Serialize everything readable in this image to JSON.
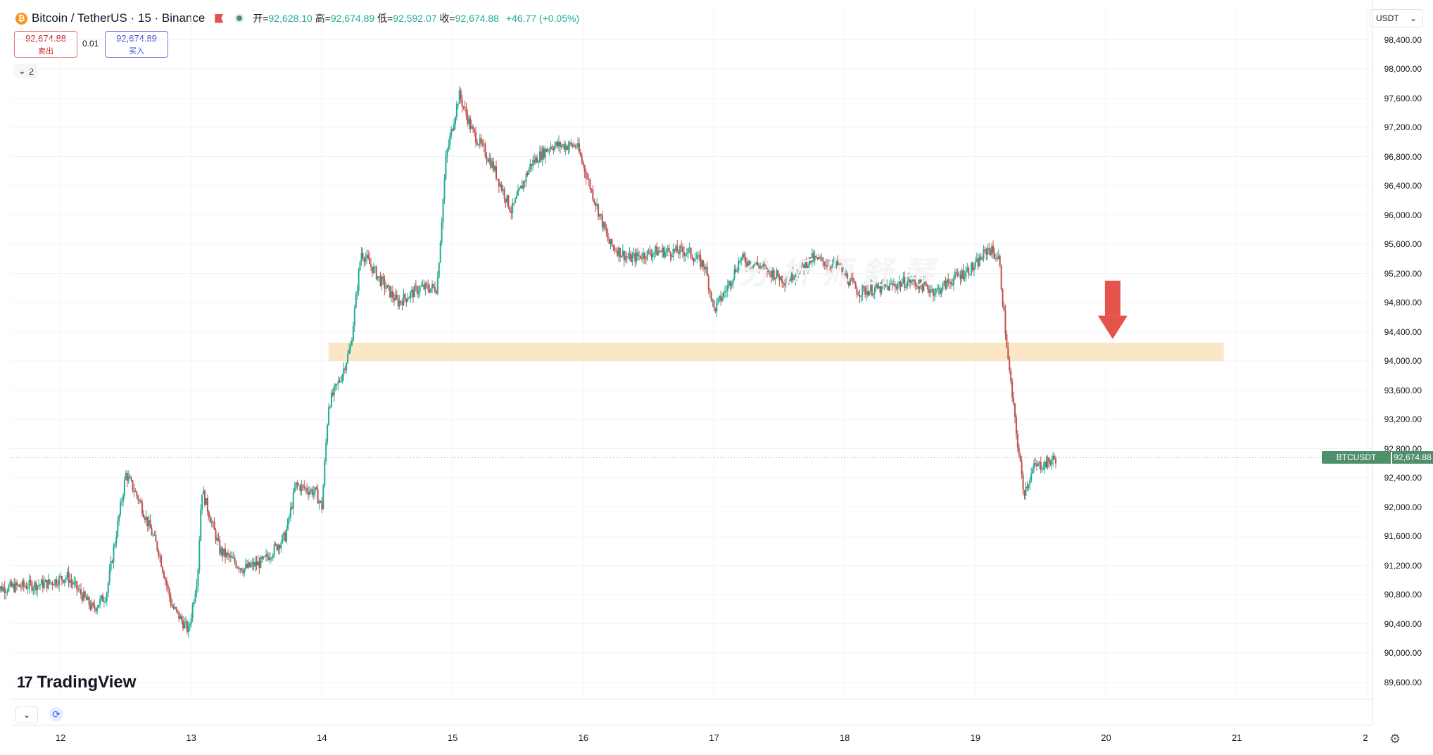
{
  "header": {
    "logo_letter": "₿",
    "title": "Bitcoin / TetherUS · 15 · Binance",
    "open_label": "开=",
    "open": "92,628.10",
    "high_label": "高=",
    "high": "92,674.89",
    "low_label": "低=",
    "low": "92,592.07",
    "close_label": "收=",
    "close": "92,674.88",
    "change": "+46.77 (+0.05%)"
  },
  "trade": {
    "sell_price": "92,674.88",
    "sell_label": "卖出",
    "spread": "0.01",
    "buy_price": "92,674.89",
    "buy_label": "买入"
  },
  "indicators": {
    "collapse_count": "2",
    "chevron_icon": "chevron-down-icon"
  },
  "currency": {
    "value": "USDT",
    "icon": "chevron-down-icon"
  },
  "watermark": "分析师舒琴",
  "brand": {
    "mark": "17",
    "name": "TradingView"
  },
  "price_axis": {
    "labels": [
      "98,400.00",
      "98,000.00",
      "97,600.00",
      "97,200.00",
      "96,800.00",
      "96,400.00",
      "96,000.00",
      "95,600.00",
      "95,200.00",
      "94,800.00",
      "94,400.00",
      "94,000.00",
      "93,600.00",
      "93,200.00",
      "92,800.00",
      "92,400.00",
      "92,000.00",
      "91,600.00",
      "91,200.00",
      "90,800.00",
      "90,400.00",
      "90,000.00",
      "89,600.00"
    ]
  },
  "last_price": {
    "symbol": "BTCUSDT",
    "price": "92,674.88"
  },
  "time_axis": {
    "labels": [
      "12",
      "13",
      "14",
      "15",
      "16",
      "17",
      "18",
      "19",
      "20",
      "21",
      "2"
    ]
  },
  "colors": {
    "up": "#22ab94",
    "down": "#c0504d",
    "zone": "#fbe7c6",
    "arrow": "#e5534b"
  },
  "chart_data": {
    "type": "candlestick",
    "interval": "15",
    "ylim": [
      89400,
      98600
    ],
    "x_day_labels": [
      "12",
      "13",
      "14",
      "15",
      "16",
      "17",
      "18",
      "19",
      "20",
      "21",
      "2"
    ],
    "path": [
      [
        11.5,
        90880
      ],
      [
        11.9,
        90950
      ],
      [
        12.05,
        91050
      ],
      [
        12.25,
        90600
      ],
      [
        12.35,
        90800
      ],
      [
        12.45,
        91900
      ],
      [
        12.5,
        92450
      ],
      [
        12.6,
        92100
      ],
      [
        12.75,
        91400
      ],
      [
        12.85,
        90650
      ],
      [
        12.98,
        90300
      ],
      [
        13.05,
        91100
      ],
      [
        13.08,
        92250
      ],
      [
        13.22,
        91400
      ],
      [
        13.4,
        91150
      ],
      [
        13.55,
        91250
      ],
      [
        13.72,
        91600
      ],
      [
        13.8,
        92300
      ],
      [
        13.95,
        92200
      ],
      [
        14.0,
        92000
      ],
      [
        14.05,
        93400
      ],
      [
        14.15,
        93800
      ],
      [
        14.22,
        94200
      ],
      [
        14.3,
        95500
      ],
      [
        14.45,
        95100
      ],
      [
        14.58,
        94800
      ],
      [
        14.75,
        95000
      ],
      [
        14.88,
        95000
      ],
      [
        14.95,
        96800
      ],
      [
        15.05,
        97650
      ],
      [
        15.15,
        97150
      ],
      [
        15.3,
        96700
      ],
      [
        15.45,
        96050
      ],
      [
        15.6,
        96700
      ],
      [
        15.75,
        96950
      ],
      [
        15.95,
        96950
      ],
      [
        16.05,
        96400
      ],
      [
        16.2,
        95600
      ],
      [
        16.35,
        95400
      ],
      [
        16.55,
        95500
      ],
      [
        16.8,
        95500
      ],
      [
        16.93,
        95300
      ],
      [
        17.0,
        94700
      ],
      [
        17.1,
        95000
      ],
      [
        17.2,
        95400
      ],
      [
        17.35,
        95300
      ],
      [
        17.55,
        95100
      ],
      [
        17.75,
        95400
      ],
      [
        17.95,
        95300
      ],
      [
        18.1,
        94950
      ],
      [
        18.3,
        95000
      ],
      [
        18.5,
        95100
      ],
      [
        18.7,
        94950
      ],
      [
        18.85,
        95150
      ],
      [
        19.0,
        95300
      ],
      [
        19.1,
        95550
      ],
      [
        19.18,
        95400
      ],
      [
        19.25,
        94000
      ],
      [
        19.32,
        92900
      ],
      [
        19.37,
        92200
      ],
      [
        19.45,
        92550
      ],
      [
        19.55,
        92600
      ],
      [
        19.62,
        92674.88
      ]
    ],
    "annotations": [
      {
        "type": "zone",
        "x_from": 14.05,
        "x_to": 20.9,
        "y_from": 94000,
        "y_to": 94250,
        "color": "#fbe7c6"
      },
      {
        "type": "arrow",
        "direction": "down",
        "x": 20.05,
        "y_from": 95100,
        "y_to": 94300,
        "color": "#e5534b"
      },
      {
        "type": "last_price_line",
        "y": 92674.88
      }
    ]
  }
}
